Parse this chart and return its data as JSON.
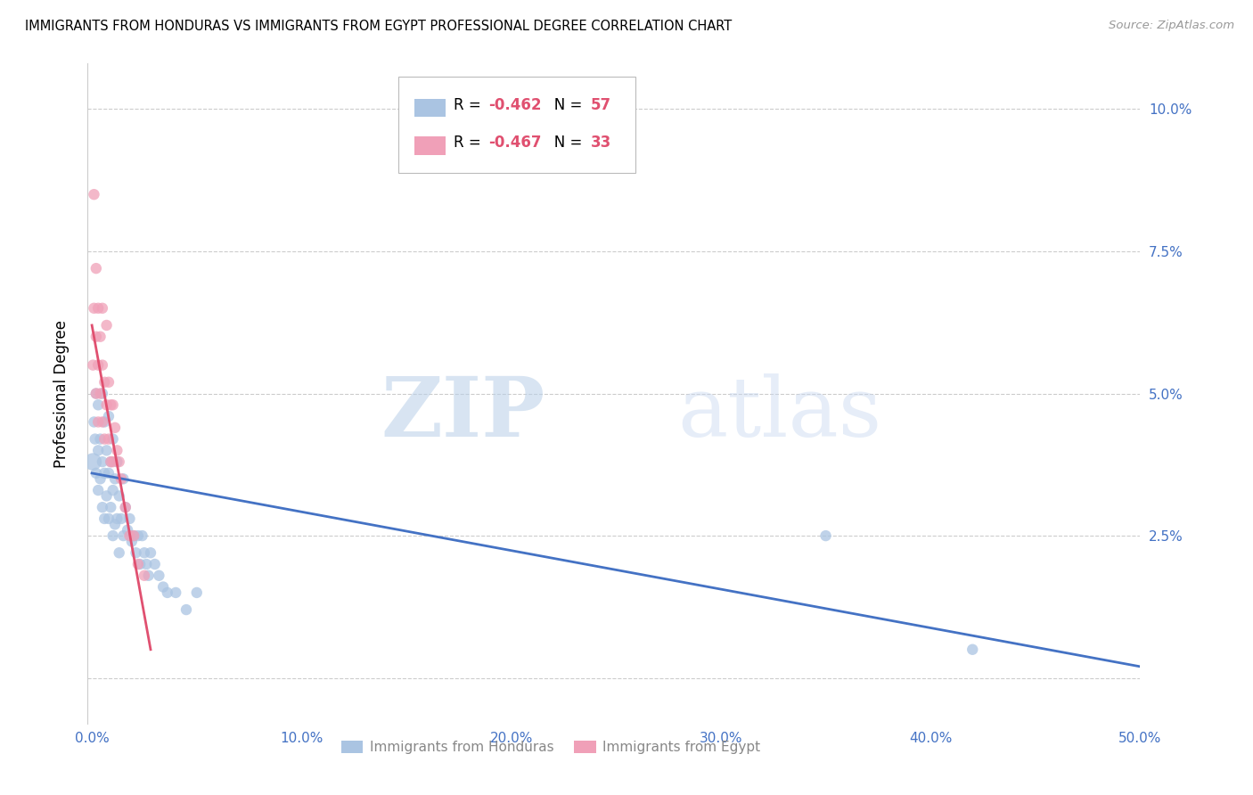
{
  "title": "IMMIGRANTS FROM HONDURAS VS IMMIGRANTS FROM EGYPT PROFESSIONAL DEGREE CORRELATION CHART",
  "source": "Source: ZipAtlas.com",
  "ylabel": "Professional Degree",
  "x_ticks": [
    0.0,
    0.1,
    0.2,
    0.3,
    0.4,
    0.5
  ],
  "x_tick_labels": [
    "0.0%",
    "10.0%",
    "20.0%",
    "30.0%",
    "40.0%",
    "50.0%"
  ],
  "y_ticks": [
    0.0,
    0.025,
    0.05,
    0.075,
    0.1
  ],
  "y_tick_labels_right": [
    "",
    "2.5%",
    "5.0%",
    "7.5%",
    "10.0%"
  ],
  "xlim": [
    -0.002,
    0.5
  ],
  "ylim": [
    -0.008,
    0.108
  ],
  "watermark_zip": "ZIP",
  "watermark_atlas": "atlas",
  "legend_label_1": "Immigrants from Honduras",
  "legend_label_2": "Immigrants from Egypt",
  "color_blue": "#aac4e2",
  "color_pink": "#f0a0b8",
  "line_color_blue": "#4472c4",
  "line_color_pink": "#e05070",
  "tick_color": "#4472c4",
  "honduras_x": [
    0.0005,
    0.001,
    0.0015,
    0.002,
    0.002,
    0.003,
    0.003,
    0.003,
    0.004,
    0.004,
    0.005,
    0.005,
    0.005,
    0.006,
    0.006,
    0.006,
    0.007,
    0.007,
    0.008,
    0.008,
    0.008,
    0.009,
    0.009,
    0.01,
    0.01,
    0.01,
    0.011,
    0.011,
    0.012,
    0.012,
    0.013,
    0.013,
    0.014,
    0.015,
    0.015,
    0.016,
    0.017,
    0.018,
    0.019,
    0.02,
    0.021,
    0.022,
    0.023,
    0.024,
    0.025,
    0.026,
    0.027,
    0.028,
    0.03,
    0.032,
    0.034,
    0.036,
    0.04,
    0.045,
    0.05,
    0.35,
    0.42
  ],
  "honduras_y": [
    0.038,
    0.045,
    0.042,
    0.05,
    0.036,
    0.048,
    0.04,
    0.033,
    0.042,
    0.035,
    0.05,
    0.038,
    0.03,
    0.045,
    0.036,
    0.028,
    0.04,
    0.032,
    0.046,
    0.036,
    0.028,
    0.038,
    0.03,
    0.042,
    0.033,
    0.025,
    0.035,
    0.027,
    0.038,
    0.028,
    0.032,
    0.022,
    0.028,
    0.035,
    0.025,
    0.03,
    0.026,
    0.028,
    0.024,
    0.025,
    0.022,
    0.025,
    0.02,
    0.025,
    0.022,
    0.02,
    0.018,
    0.022,
    0.02,
    0.018,
    0.016,
    0.015,
    0.015,
    0.012,
    0.015,
    0.025,
    0.005
  ],
  "honduras_size": [
    200,
    80,
    80,
    80,
    80,
    80,
    80,
    80,
    80,
    80,
    80,
    80,
    80,
    80,
    80,
    80,
    80,
    80,
    80,
    80,
    80,
    80,
    80,
    80,
    80,
    80,
    80,
    80,
    80,
    80,
    80,
    80,
    80,
    80,
    80,
    80,
    80,
    80,
    80,
    80,
    80,
    80,
    80,
    80,
    80,
    80,
    80,
    80,
    80,
    80,
    80,
    80,
    80,
    80,
    80,
    80,
    80
  ],
  "egypt_x": [
    0.0005,
    0.001,
    0.001,
    0.002,
    0.002,
    0.002,
    0.003,
    0.003,
    0.003,
    0.004,
    0.004,
    0.005,
    0.005,
    0.005,
    0.006,
    0.006,
    0.007,
    0.007,
    0.008,
    0.008,
    0.009,
    0.009,
    0.01,
    0.01,
    0.011,
    0.012,
    0.013,
    0.014,
    0.016,
    0.018,
    0.02,
    0.022,
    0.025
  ],
  "egypt_y": [
    0.055,
    0.065,
    0.085,
    0.072,
    0.06,
    0.05,
    0.065,
    0.055,
    0.045,
    0.06,
    0.05,
    0.065,
    0.055,
    0.045,
    0.052,
    0.042,
    0.062,
    0.048,
    0.052,
    0.042,
    0.048,
    0.038,
    0.048,
    0.038,
    0.044,
    0.04,
    0.038,
    0.035,
    0.03,
    0.025,
    0.025,
    0.02,
    0.018
  ],
  "egypt_size": [
    80,
    80,
    80,
    80,
    80,
    80,
    80,
    80,
    80,
    80,
    80,
    80,
    80,
    80,
    80,
    80,
    80,
    80,
    80,
    80,
    80,
    80,
    80,
    80,
    80,
    80,
    80,
    80,
    80,
    80,
    80,
    80,
    80
  ],
  "blue_line_x": [
    0.0,
    0.5
  ],
  "blue_line_y": [
    0.036,
    0.002
  ],
  "pink_line_x": [
    0.0,
    0.028
  ],
  "pink_line_y": [
    0.062,
    0.005
  ]
}
